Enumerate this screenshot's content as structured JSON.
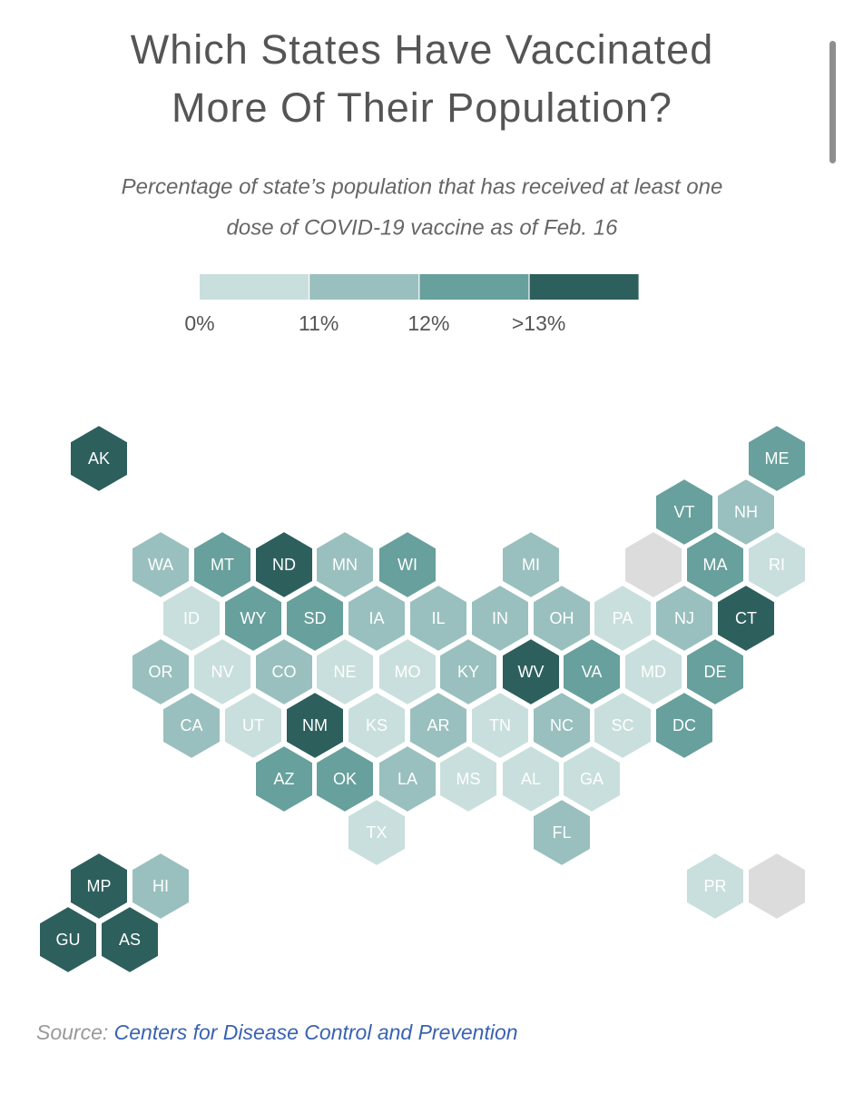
{
  "chart_data": {
    "type": "hexmap",
    "title": [
      "Which States Have Vaccinated",
      "More Of Their Population?"
    ],
    "subtitle": [
      "Percentage of state’s population that has received at least one",
      "dose of COVID-19 vaccine as of Feb. 16"
    ],
    "legend": [
      {
        "label": "0%",
        "color": "#c9dfdd"
      },
      {
        "label": "11%",
        "color": "#99c0be"
      },
      {
        "label": "12%",
        "color": "#67a09c"
      },
      {
        "label": ">13%",
        "color": "#2d5f5d"
      }
    ],
    "states": [
      {
        "label": "AK",
        "color": "#2d5f5d"
      },
      {
        "label": "ME",
        "color": "#67a09c"
      },
      {
        "label": "VT",
        "color": "#67a09c"
      },
      {
        "label": "NH",
        "color": "#99c0be"
      },
      {
        "label": "WA",
        "color": "#99c0be"
      },
      {
        "label": "MT",
        "color": "#67a09c"
      },
      {
        "label": "ND",
        "color": "#2d5f5d"
      },
      {
        "label": "MN",
        "color": "#99c0be"
      },
      {
        "label": "WI",
        "color": "#67a09c"
      },
      {
        "label": "MI",
        "color": "#99c0be"
      },
      {
        "label": null,
        "color": "#dcdcdc"
      },
      {
        "label": "MA",
        "color": "#67a09c"
      },
      {
        "label": "RI",
        "color": "#c9dfdd"
      },
      {
        "label": "ID",
        "color": "#c9dfdd"
      },
      {
        "label": "WY",
        "color": "#67a09c"
      },
      {
        "label": "SD",
        "color": "#67a09c"
      },
      {
        "label": "IA",
        "color": "#99c0be"
      },
      {
        "label": "IL",
        "color": "#99c0be"
      },
      {
        "label": "IN",
        "color": "#99c0be"
      },
      {
        "label": "OH",
        "color": "#99c0be"
      },
      {
        "label": "PA",
        "color": "#c9dfdd"
      },
      {
        "label": "NJ",
        "color": "#99c0be"
      },
      {
        "label": "CT",
        "color": "#2d5f5d"
      },
      {
        "label": "OR",
        "color": "#99c0be"
      },
      {
        "label": "NV",
        "color": "#c9dfdd"
      },
      {
        "label": "CO",
        "color": "#99c0be"
      },
      {
        "label": "NE",
        "color": "#c9dfdd"
      },
      {
        "label": "MO",
        "color": "#c9dfdd"
      },
      {
        "label": "KY",
        "color": "#99c0be"
      },
      {
        "label": "WV",
        "color": "#2d5f5d"
      },
      {
        "label": "VA",
        "color": "#67a09c"
      },
      {
        "label": "MD",
        "color": "#c9dfdd"
      },
      {
        "label": "DE",
        "color": "#67a09c"
      },
      {
        "label": "CA",
        "color": "#99c0be"
      },
      {
        "label": "UT",
        "color": "#c9dfdd"
      },
      {
        "label": "NM",
        "color": "#2d5f5d"
      },
      {
        "label": "KS",
        "color": "#c9dfdd"
      },
      {
        "label": "AR",
        "color": "#99c0be"
      },
      {
        "label": "TN",
        "color": "#c9dfdd"
      },
      {
        "label": "NC",
        "color": "#99c0be"
      },
      {
        "label": "SC",
        "color": "#c9dfdd"
      },
      {
        "label": "DC",
        "color": "#67a09c"
      },
      {
        "label": "AZ",
        "color": "#67a09c"
      },
      {
        "label": "OK",
        "color": "#67a09c"
      },
      {
        "label": "LA",
        "color": "#99c0be"
      },
      {
        "label": "MS",
        "color": "#c9dfdd"
      },
      {
        "label": "AL",
        "color": "#c9dfdd"
      },
      {
        "label": "GA",
        "color": "#c9dfdd"
      },
      {
        "label": "TX",
        "color": "#c9dfdd"
      },
      {
        "label": "FL",
        "color": "#99c0be"
      },
      {
        "label": "MP",
        "color": "#2d5f5d"
      },
      {
        "label": "HI",
        "color": "#99c0be"
      },
      {
        "label": "PR",
        "color": "#c9dfdd"
      },
      {
        "label": null,
        "color": "#dcdcdc"
      },
      {
        "label": "GU",
        "color": "#2d5f5d"
      },
      {
        "label": "AS",
        "color": "#2d5f5d"
      }
    ],
    "source": {
      "label": "Source:",
      "text": "Centers for Disease Control and Prevention"
    }
  }
}
